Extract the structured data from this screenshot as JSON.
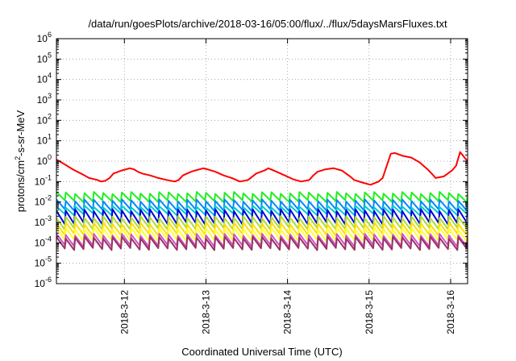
{
  "chart_data": {
    "type": "line",
    "title": "/data/run/goesPlots/archive/2018-03-16/05:00/flux/../flux/5daysMarsFluxes.txt",
    "xlabel": "Coordinated Universal Time (UTC)",
    "ylabel_prefix": "protons/cm",
    "ylabel_sup": "2",
    "ylabel_suffix": "-s-sr-MeV",
    "y_scale": "log",
    "ylim": [
      1e-06,
      1000000.0
    ],
    "y_ticks": [
      {
        "base": "10",
        "exp": "6"
      },
      {
        "base": "10",
        "exp": "5"
      },
      {
        "base": "10",
        "exp": "4"
      },
      {
        "base": "10",
        "exp": "3"
      },
      {
        "base": "10",
        "exp": "2"
      },
      {
        "base": "10",
        "exp": "1"
      },
      {
        "base": "10",
        "exp": "0"
      },
      {
        "base": "10",
        "exp": "-1"
      },
      {
        "base": "10",
        "exp": "-2"
      },
      {
        "base": "10",
        "exp": "-3"
      },
      {
        "base": "10",
        "exp": "-4"
      },
      {
        "base": "10",
        "exp": "-5"
      },
      {
        "base": "10",
        "exp": "-6"
      }
    ],
    "xlim": [
      "2018-03-11 04:00",
      "2018-03-16 05:00"
    ],
    "x_ticks": [
      "2018-3-12",
      "2018-3-13",
      "2018-3-14",
      "2018-3-15",
      "2018-3-16"
    ],
    "grid": true,
    "series": [
      {
        "color": "#ff0000",
        "x": [
          0.0,
          0.1,
          0.2,
          0.3,
          0.4,
          0.5,
          0.55,
          0.6,
          0.65,
          0.7,
          0.8,
          0.9,
          0.95,
          1.0,
          1.05,
          1.15,
          1.25,
          1.35,
          1.45,
          1.5,
          1.55,
          1.65,
          1.7,
          1.8,
          1.85,
          1.95,
          2.05,
          2.15,
          2.25,
          2.35,
          2.45,
          2.55,
          2.6,
          2.7,
          2.8,
          2.9,
          3.0,
          3.1,
          3.15,
          3.2,
          3.3,
          3.4,
          3.5,
          3.55,
          3.6,
          3.65,
          3.75,
          3.85,
          3.95,
          4.0,
          4.1,
          4.15,
          4.25,
          4.35,
          4.45,
          4.55,
          4.6,
          4.65,
          4.75,
          4.85,
          4.9,
          4.95,
          5.04
        ],
        "y": [
          1.2,
          0.7,
          0.4,
          0.25,
          0.15,
          0.12,
          0.1,
          0.11,
          0.15,
          0.25,
          0.35,
          0.45,
          0.4,
          0.3,
          0.25,
          0.2,
          0.15,
          0.12,
          0.1,
          0.12,
          0.2,
          0.3,
          0.35,
          0.45,
          0.4,
          0.3,
          0.2,
          0.15,
          0.1,
          0.12,
          0.25,
          0.35,
          0.45,
          0.3,
          0.2,
          0.13,
          0.1,
          0.12,
          0.2,
          0.3,
          0.4,
          0.45,
          0.35,
          0.25,
          0.18,
          0.12,
          0.09,
          0.07,
          0.1,
          0.15,
          2.3,
          2.5,
          1.8,
          1.5,
          0.9,
          0.4,
          0.25,
          0.15,
          0.18,
          0.35,
          0.6,
          2.8,
          1.0
        ]
      },
      {
        "color": "#22ee22",
        "peak": 0.028,
        "trough": 0.011
      },
      {
        "color": "#0088ff",
        "peak": 0.012,
        "trough": 0.004
      },
      {
        "color": "#00cccc",
        "peak": 0.006,
        "trough": 0.0025
      },
      {
        "color": "#0000dd",
        "peak": 0.004,
        "trough": 0.0009
      },
      {
        "color": "#aadd33",
        "peak": 0.0018,
        "trough": 0.0005
      },
      {
        "color": "#ffdd00",
        "peak": 0.0009,
        "trough": 0.00025
      },
      {
        "color": "#ffff33",
        "peak": 0.0005,
        "trough": 0.00013
      },
      {
        "color": "#cc55cc",
        "peak": 0.00025,
        "trough": 7e-05
      },
      {
        "color": "#993366",
        "peak": 0.00018,
        "trough": 5e-05
      }
    ]
  }
}
